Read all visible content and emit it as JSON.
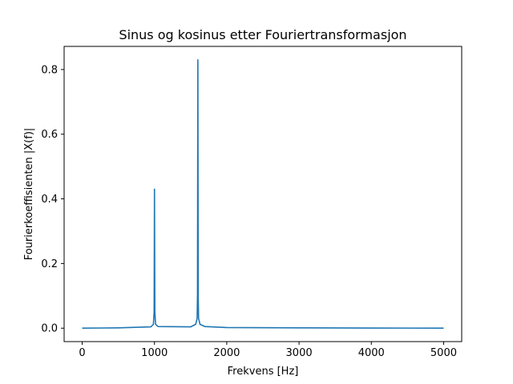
{
  "chart_data": {
    "type": "line",
    "title": "Sinus og kosinus etter Fouriertransformasjon",
    "xlabel": "Frekvens [Hz]",
    "ylabel": "Fourierkoeffisienten |X(f)|",
    "xlim": [
      -250,
      5250
    ],
    "ylim": [
      -0.0415,
      0.8715
    ],
    "x_ticks": [
      0,
      1000,
      2000,
      3000,
      4000,
      5000
    ],
    "x_tick_labels": [
      "0",
      "1000",
      "2000",
      "3000",
      "4000",
      "5000"
    ],
    "y_ticks": [
      0.0,
      0.2,
      0.4,
      0.6,
      0.8
    ],
    "y_tick_labels": [
      "0.0",
      "0.2",
      "0.4",
      "0.6",
      "0.8"
    ],
    "grid": false,
    "series": [
      {
        "color": "#1f77b4",
        "x": [
          0,
          500,
          950,
          985,
          995,
          1000,
          1005,
          1015,
          1050,
          1500,
          1570,
          1590,
          1595,
          1600,
          1605,
          1610,
          1630,
          1700,
          2000,
          3000,
          4000,
          5000
        ],
        "y": [
          0.0,
          0.001,
          0.004,
          0.012,
          0.05,
          0.43,
          0.05,
          0.012,
          0.005,
          0.004,
          0.012,
          0.03,
          0.1,
          0.83,
          0.1,
          0.03,
          0.012,
          0.005,
          0.002,
          0.001,
          0.0005,
          0.0
        ]
      }
    ]
  }
}
